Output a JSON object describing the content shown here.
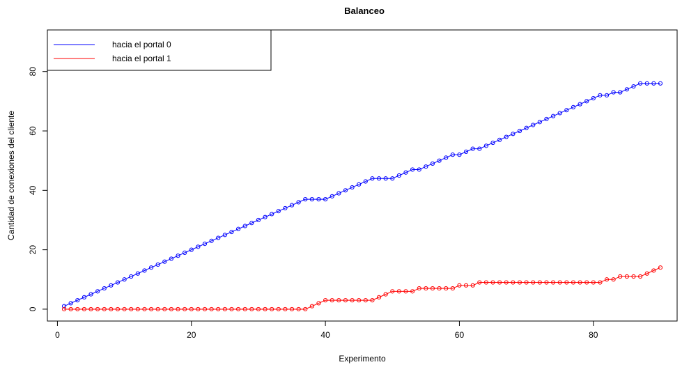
{
  "chart_data": {
    "type": "line",
    "title": "Balanceo",
    "xlabel": "Experimento",
    "ylabel": "Cantidad de conexiones del cliente",
    "xlim": [
      -1.5,
      92.5
    ],
    "ylim": [
      -4,
      94
    ],
    "x_ticks": [
      0,
      20,
      40,
      60,
      80
    ],
    "y_ticks": [
      0,
      20,
      40,
      60,
      80
    ],
    "markers": "open-circle",
    "legend_position": "top-left",
    "series": [
      {
        "name": "hacia el portal 0",
        "color": "#0000ff",
        "x": [
          1,
          2,
          3,
          4,
          5,
          6,
          7,
          8,
          9,
          10,
          11,
          12,
          13,
          14,
          15,
          16,
          17,
          18,
          19,
          20,
          21,
          22,
          23,
          24,
          25,
          26,
          27,
          28,
          29,
          30,
          31,
          32,
          33,
          34,
          35,
          36,
          37,
          38,
          39,
          40,
          41,
          42,
          43,
          44,
          45,
          46,
          47,
          48,
          49,
          50,
          51,
          52,
          53,
          54,
          55,
          56,
          57,
          58,
          59,
          60,
          61,
          62,
          63,
          64,
          65,
          66,
          67,
          68,
          69,
          70,
          71,
          72,
          73,
          74,
          75,
          76,
          77,
          78,
          79,
          80,
          81,
          82,
          83,
          84,
          85,
          86,
          87,
          88,
          89,
          90
        ],
        "values": [
          1,
          2,
          3,
          4,
          5,
          6,
          7,
          8,
          9,
          10,
          11,
          12,
          13,
          14,
          15,
          16,
          17,
          18,
          19,
          20,
          21,
          22,
          23,
          24,
          25,
          26,
          27,
          28,
          29,
          30,
          31,
          32,
          33,
          34,
          35,
          36,
          37,
          37,
          37,
          37,
          38,
          39,
          40,
          41,
          42,
          43,
          44,
          44,
          44,
          44,
          45,
          46,
          47,
          47,
          48,
          49,
          50,
          51,
          52,
          52,
          53,
          54,
          54,
          55,
          56,
          57,
          58,
          59,
          60,
          61,
          62,
          63,
          64,
          65,
          66,
          67,
          68,
          69,
          70,
          71,
          72,
          72,
          73,
          73,
          74,
          75,
          76,
          76,
          76,
          76
        ]
      },
      {
        "name": "hacia el portal 1",
        "color": "#ff0000",
        "x": [
          1,
          2,
          3,
          4,
          5,
          6,
          7,
          8,
          9,
          10,
          11,
          12,
          13,
          14,
          15,
          16,
          17,
          18,
          19,
          20,
          21,
          22,
          23,
          24,
          25,
          26,
          27,
          28,
          29,
          30,
          31,
          32,
          33,
          34,
          35,
          36,
          37,
          38,
          39,
          40,
          41,
          42,
          43,
          44,
          45,
          46,
          47,
          48,
          49,
          50,
          51,
          52,
          53,
          54,
          55,
          56,
          57,
          58,
          59,
          60,
          61,
          62,
          63,
          64,
          65,
          66,
          67,
          68,
          69,
          70,
          71,
          72,
          73,
          74,
          75,
          76,
          77,
          78,
          79,
          80,
          81,
          82,
          83,
          84,
          85,
          86,
          87,
          88,
          89,
          90
        ],
        "values": [
          0,
          0,
          0,
          0,
          0,
          0,
          0,
          0,
          0,
          0,
          0,
          0,
          0,
          0,
          0,
          0,
          0,
          0,
          0,
          0,
          0,
          0,
          0,
          0,
          0,
          0,
          0,
          0,
          0,
          0,
          0,
          0,
          0,
          0,
          0,
          0,
          0,
          1,
          2,
          3,
          3,
          3,
          3,
          3,
          3,
          3,
          3,
          4,
          5,
          6,
          6,
          6,
          6,
          7,
          7,
          7,
          7,
          7,
          7,
          8,
          8,
          8,
          9,
          9,
          9,
          9,
          9,
          9,
          9,
          9,
          9,
          9,
          9,
          9,
          9,
          9,
          9,
          9,
          9,
          9,
          9,
          10,
          10,
          11,
          11,
          11,
          11,
          12,
          13,
          14
        ]
      }
    ]
  }
}
